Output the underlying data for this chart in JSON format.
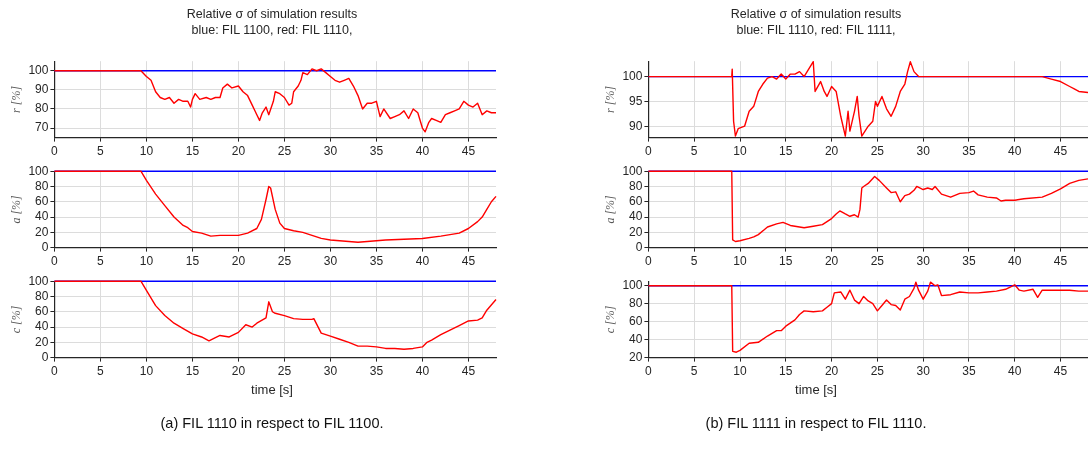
{
  "chart_data": [
    {
      "type": "line",
      "title": "Relative σ of simulation results",
      "subtitle": "blue: FIL 1100, red: FIL 1110,",
      "ylabel": "r [%]",
      "xlim": [
        0,
        48
      ],
      "xticks": [
        0,
        5,
        10,
        15,
        20,
        25,
        30,
        35,
        40,
        45
      ],
      "ylim": [
        65,
        105
      ],
      "yticks": [
        70,
        80,
        90,
        100
      ],
      "grid": true,
      "series": [
        {
          "color": "#0000ff",
          "x": [
            0,
            48
          ],
          "values": [
            100,
            100
          ]
        },
        {
          "color": "#ff0000",
          "x": [
            0,
            9.4,
            10,
            10.5,
            11,
            11.5,
            12,
            12.5,
            13,
            13.5,
            14,
            14.5,
            14.8,
            15,
            15.3,
            15.8,
            16.5,
            17,
            17.5,
            18,
            18.3,
            18.8,
            19.3,
            20,
            20.5,
            21,
            21.5,
            22,
            22.3,
            22.6,
            23,
            23.3,
            23.8,
            24,
            24.5,
            25,
            25.5,
            25.8,
            26,
            26.5,
            26.8,
            27,
            27.5,
            28,
            28.5,
            29,
            29.5,
            30,
            30.5,
            31,
            31.5,
            32,
            32.5,
            33,
            33.5,
            34,
            34.5,
            35,
            35.4,
            35.8,
            36.5,
            37,
            37.5,
            38,
            38.5,
            39,
            39.5,
            40,
            40.3,
            40.7,
            41,
            41.5,
            42,
            42.5,
            43,
            43.5,
            44,
            44.5,
            45,
            45.5,
            46,
            46.5,
            47,
            47.5,
            48
          ],
          "values": [
            100,
            100,
            97,
            95,
            89,
            86,
            85,
            86,
            83,
            85,
            84,
            84,
            81,
            85,
            88,
            85,
            86,
            85,
            86,
            86,
            91,
            93,
            91,
            92,
            89,
            87,
            82,
            77,
            74,
            78,
            81,
            77,
            84,
            89,
            88,
            86,
            82,
            83,
            89,
            92,
            95,
            99,
            98,
            101,
            100,
            101,
            99,
            97,
            95,
            94,
            95,
            96,
            92,
            87,
            80,
            83,
            83,
            84,
            76,
            80,
            75,
            76,
            77,
            79,
            75,
            80,
            78,
            70,
            68,
            73,
            75,
            74,
            73,
            77,
            78,
            79,
            80,
            84,
            82,
            81,
            83,
            77,
            79,
            78,
            78
          ]
        }
      ]
    },
    {
      "type": "line",
      "ylabel": "a [%]",
      "xlim": [
        0,
        48
      ],
      "xticks": [
        0,
        5,
        10,
        15,
        20,
        25,
        30,
        35,
        40,
        45
      ],
      "ylim": [
        0,
        100
      ],
      "yticks": [
        0,
        20,
        40,
        60,
        80,
        100
      ],
      "grid": true,
      "series": [
        {
          "color": "#0000ff",
          "x": [
            0,
            48
          ],
          "values": [
            100,
            100
          ]
        },
        {
          "color": "#ff0000",
          "x": [
            0,
            9.4,
            10,
            11,
            12,
            13,
            14,
            14.5,
            15,
            16,
            17,
            18,
            19,
            20,
            21,
            22,
            22.5,
            23,
            23.3,
            23.5,
            24,
            24.5,
            25,
            26,
            27,
            28,
            29,
            30,
            31,
            32,
            33,
            34,
            35,
            36,
            38,
            40,
            42,
            44,
            45,
            46,
            46.5,
            47,
            47.5,
            48
          ],
          "values": [
            100,
            100,
            88,
            70,
            55,
            40,
            29,
            26,
            21,
            19,
            15,
            16,
            16,
            16,
            19,
            25,
            37,
            63,
            80,
            78,
            50,
            32,
            25,
            22,
            20,
            16,
            12,
            10,
            9,
            8,
            7,
            8,
            9,
            10,
            11,
            12,
            15,
            19,
            25,
            34,
            40,
            50,
            60,
            67
          ]
        }
      ]
    },
    {
      "type": "line",
      "ylabel": "c [%]",
      "xlabel": "time [s]",
      "annotations": [
        "(a) FIL 1110 in respect to FIL 1100."
      ],
      "xlim": [
        0,
        48
      ],
      "xticks": [
        0,
        5,
        10,
        15,
        20,
        25,
        30,
        35,
        40,
        45
      ],
      "ylim": [
        0,
        100
      ],
      "yticks": [
        0,
        20,
        40,
        60,
        80,
        100
      ],
      "grid": true,
      "series": [
        {
          "color": "#0000ff",
          "x": [
            0,
            48
          ],
          "values": [
            100,
            100
          ]
        },
        {
          "color": "#ff0000",
          "x": [
            0,
            9.4,
            10,
            11,
            12,
            13,
            14,
            15,
            16,
            16.8,
            17.5,
            18,
            19,
            20,
            20.8,
            21.5,
            22,
            23,
            23.3,
            23.7,
            24,
            25,
            26,
            27,
            28,
            28.2,
            29,
            30,
            31,
            32,
            33,
            34,
            35,
            36,
            37,
            38,
            39,
            40,
            40.5,
            41,
            42,
            43,
            44,
            45,
            46,
            46.5,
            47,
            48
          ],
          "values": [
            100,
            100,
            88,
            68,
            55,
            45,
            38,
            31,
            27,
            22,
            26,
            29,
            27,
            33,
            43,
            40,
            45,
            52,
            73,
            60,
            58,
            55,
            51,
            50,
            50,
            51,
            32,
            28,
            24,
            20,
            15,
            15,
            14,
            12,
            12,
            11,
            12,
            14,
            20,
            23,
            30,
            36,
            42,
            48,
            49,
            52,
            62,
            76
          ]
        }
      ]
    },
    {
      "type": "line",
      "title": "Relative σ of simulation results",
      "subtitle": "blue: FIL 1110, red: FIL 1111,",
      "ylabel": "r [%]",
      "xlim": [
        0,
        48
      ],
      "xticks": [
        0,
        5,
        10,
        15,
        20,
        25,
        30,
        35,
        40,
        45
      ],
      "ylim": [
        87.7,
        103.1
      ],
      "yticks": [
        90,
        95,
        100
      ],
      "grid": true,
      "series": [
        {
          "color": "#0000ff",
          "x": [
            0,
            48
          ],
          "values": [
            100,
            100
          ]
        },
        {
          "color": "#ff0000",
          "x": [
            0,
            9.1,
            9.15,
            9.3,
            9.5,
            9.8,
            10.5,
            11,
            11.5,
            12,
            12.5,
            13,
            13.5,
            14,
            14.5,
            15,
            15.5,
            16,
            16.5,
            17,
            17.5,
            18,
            18.2,
            18.8,
            19.2,
            19.5,
            20,
            20.5,
            21,
            21.5,
            21.8,
            22,
            22.5,
            22.8,
            23,
            23.3,
            24,
            24.5,
            24.8,
            25,
            25.5,
            26,
            26.5,
            27,
            27.5,
            28,
            28.3,
            28.6,
            29,
            29.5,
            30,
            31,
            32,
            33,
            35,
            38,
            40,
            43,
            44,
            45,
            46,
            46.5,
            47,
            48
          ],
          "values": [
            100,
            100,
            101.5,
            91,
            88,
            89.5,
            90,
            93,
            94,
            97,
            98.5,
            99.7,
            100,
            99.5,
            100.5,
            99.5,
            100.5,
            100.5,
            101,
            100,
            101.5,
            103,
            97,
            99,
            97,
            96,
            98,
            97,
            92,
            88,
            93,
            89,
            93,
            96,
            92,
            88,
            90,
            91,
            95,
            94,
            96,
            93.5,
            92,
            94,
            97,
            98.5,
            101,
            103,
            101,
            100,
            100,
            100,
            100,
            100,
            100,
            100,
            100,
            100,
            99.5,
            99,
            98,
            97.5,
            97,
            96.8
          ]
        }
      ]
    },
    {
      "type": "line",
      "ylabel": "a [%]",
      "xlim": [
        0,
        48
      ],
      "xticks": [
        0,
        5,
        10,
        15,
        20,
        25,
        30,
        35,
        40,
        45
      ],
      "ylim": [
        0,
        100
      ],
      "yticks": [
        0,
        20,
        40,
        60,
        80,
        100
      ],
      "grid": true,
      "series": [
        {
          "color": "#0000ff",
          "x": [
            0,
            48
          ],
          "values": [
            100,
            100
          ]
        },
        {
          "color": "#ff0000",
          "x": [
            0,
            9.1,
            9.2,
            9.5,
            10,
            11,
            11.5,
            12,
            13,
            14,
            14.7,
            15.5,
            16,
            17,
            18,
            19,
            19.5,
            20,
            20.5,
            20.9,
            21.5,
            22,
            22.5,
            22.9,
            23.1,
            23.3,
            23.5,
            24,
            24.7,
            25.2,
            26,
            26.5,
            27,
            27.5,
            28,
            28.5,
            29,
            29.3,
            30,
            30.5,
            31,
            31.3,
            32,
            33,
            34,
            35,
            35.5,
            36,
            37,
            38,
            38.5,
            39,
            40,
            41,
            43,
            44,
            45,
            46,
            47,
            48
          ],
          "values": [
            100,
            100,
            10,
            8,
            9,
            12,
            14,
            17,
            27,
            31,
            33,
            29,
            28,
            26,
            28,
            30,
            34,
            38,
            44,
            48,
            44,
            41,
            43,
            40,
            50,
            78,
            80,
            84,
            93,
            88,
            78,
            72,
            73,
            60,
            68,
            70,
            75,
            80,
            76,
            78,
            76,
            80,
            70,
            66,
            71,
            72,
            74,
            69,
            66,
            65,
            61,
            62,
            62,
            64,
            66,
            71,
            77,
            84,
            88,
            90
          ]
        }
      ]
    },
    {
      "type": "line",
      "ylabel": "c [%]",
      "xlabel": "time [s]",
      "annotations": [
        "(b) FIL 1111 in respect to FIL 1110."
      ],
      "xlim": [
        0,
        48
      ],
      "xticks": [
        0,
        5,
        10,
        15,
        20,
        25,
        30,
        35,
        40,
        45
      ],
      "ylim": [
        20,
        105
      ],
      "yticks": [
        20,
        40,
        60,
        80,
        100
      ],
      "grid": true,
      "series": [
        {
          "color": "#0000ff",
          "x": [
            0,
            48
          ],
          "values": [
            100,
            100
          ]
        },
        {
          "color": "#ff0000",
          "x": [
            0,
            9.1,
            9.2,
            9.6,
            10,
            11,
            12,
            13,
            14,
            14.5,
            15,
            16,
            16.5,
            17,
            18,
            19,
            19.5,
            20,
            20.3,
            21,
            21.5,
            22,
            22.5,
            23,
            23.5,
            24,
            24.5,
            25,
            25.5,
            26,
            26.5,
            27,
            27.5,
            28,
            28.5,
            29,
            29.2,
            29.5,
            30,
            30.5,
            30.8,
            31.3,
            31.6,
            32,
            33,
            34,
            35,
            36,
            37,
            38,
            39,
            40,
            40.5,
            41,
            42,
            42.5,
            43,
            44,
            45,
            46,
            47,
            48
          ],
          "values": [
            100,
            100,
            27,
            26,
            28,
            36,
            37,
            44,
            50,
            50,
            55,
            62,
            68,
            72,
            71,
            72,
            76,
            80,
            92,
            93,
            85,
            95,
            84,
            80,
            88,
            83,
            80,
            72,
            78,
            84,
            79,
            78,
            73,
            85,
            88,
            97,
            104,
            95,
            85,
            94,
            104,
            100,
            101,
            89,
            90,
            93,
            92,
            92,
            93,
            94,
            96,
            101,
            95,
            94,
            96,
            87,
            95,
            95,
            95,
            95,
            94,
            94
          ]
        }
      ]
    }
  ]
}
